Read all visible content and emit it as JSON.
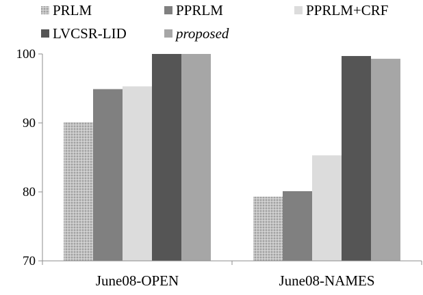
{
  "chart_data": {
    "type": "bar",
    "title": "",
    "xlabel": "",
    "ylabel": "",
    "categories": [
      "June08-OPEN",
      "June08-NAMES"
    ],
    "ylim": [
      70,
      100
    ],
    "yticks": [
      70,
      80,
      90,
      100
    ],
    "grid": false,
    "legend_position": "top",
    "series": [
      {
        "name": "PRLM",
        "values": [
          90.1,
          79.3
        ],
        "color": "#b9b9b9",
        "pattern": "dotted"
      },
      {
        "name": "PPRLM",
        "values": [
          94.9,
          80.1
        ],
        "color": "#808080",
        "pattern": "solid"
      },
      {
        "name": "PPRLM+CRF",
        "values": [
          95.3,
          85.3
        ],
        "color": "#dcdcdc",
        "pattern": "solid"
      },
      {
        "name": "LVCSR-LID",
        "values": [
          100,
          99.7
        ],
        "color": "#555555",
        "pattern": "solid"
      },
      {
        "name": "proposed",
        "values": [
          100,
          99.3
        ],
        "color": "#a6a6a6",
        "pattern": "solid",
        "italic": true
      }
    ]
  }
}
